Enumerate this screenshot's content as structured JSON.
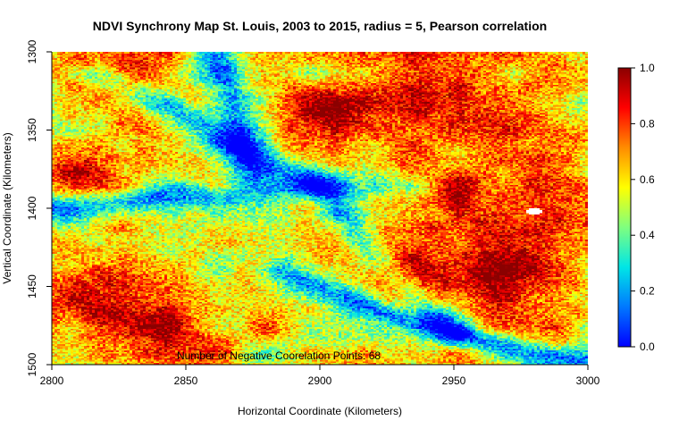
{
  "chart_data": {
    "type": "heatmap",
    "title": "NDVI Synchrony Map St. Louis, 2003 to 2015, radius = 5, Pearson correlation",
    "xlabel": "Horizontal Coordinate (Kilometers)",
    "ylabel": "Vertical Coordinate (Kilometers)",
    "xlim": [
      2800,
      3000
    ],
    "ylim": [
      1500,
      1300
    ],
    "x_ticks": [
      2800,
      2850,
      2900,
      2950,
      3000
    ],
    "x_tick_labels": [
      "2800",
      "2850",
      "2900",
      "2950",
      "3000"
    ],
    "y_ticks": [
      1300,
      1350,
      1400,
      1450,
      1500
    ],
    "y_tick_labels": [
      "1300",
      "1350",
      "1400",
      "1450",
      "1500"
    ],
    "colorbar": {
      "ticks": [
        0.0,
        0.2,
        0.4,
        0.6,
        0.8,
        1.0
      ],
      "tick_labels": [
        "0.0",
        "0.2",
        "0.4",
        "0.6",
        "0.8",
        "1.0"
      ],
      "range": [
        0.0,
        1.0
      ],
      "colors": [
        "#0000ff",
        "#0078ff",
        "#00e6e6",
        "#7fff7f",
        "#ffff00",
        "#ff8c00",
        "#ff0000",
        "#8b0000"
      ]
    },
    "annotation": "Number of Negative Coorelation Points: 68",
    "grid": false,
    "features": {
      "low_synchrony_bands": [
        {
          "x": [
            2818,
            2830,
            2845,
            2860,
            2878,
            2895,
            2905,
            2915,
            2930,
            2950
          ],
          "y": [
            1315,
            1325,
            1338,
            1352,
            1368,
            1380,
            1395,
            1420,
            1445,
            1480
          ]
        },
        {
          "x": [
            2800,
            2820,
            2840,
            2860,
            2880,
            2900,
            2920
          ],
          "y": [
            1400,
            1397,
            1394,
            1392,
            1388,
            1385,
            1386
          ]
        },
        {
          "x": [
            2885,
            2900,
            2915,
            2935,
            2955,
            2975,
            3000
          ],
          "y": [
            1440,
            1452,
            1462,
            1472,
            1482,
            1492,
            1500
          ]
        },
        {
          "x": [
            2860,
            2868,
            2872,
            2875
          ],
          "y": [
            1300,
            1330,
            1358,
            1378
          ]
        }
      ],
      "high_synchrony_blobs": [
        {
          "x": 2950,
          "y": 1325,
          "r": 50
        },
        {
          "x": 2968,
          "y": 1405,
          "r": 45
        },
        {
          "x": 2808,
          "y": 1455,
          "r": 30
        },
        {
          "x": 2838,
          "y": 1475,
          "r": 35
        },
        {
          "x": 2900,
          "y": 1340,
          "r": 24
        },
        {
          "x": 2830,
          "y": 1315,
          "r": 25
        },
        {
          "x": 2810,
          "y": 1380,
          "r": 18
        },
        {
          "x": 2960,
          "y": 1450,
          "r": 40
        },
        {
          "x": 2925,
          "y": 1440,
          "r": 20
        }
      ],
      "blank_column_x": 2813,
      "blank_patch": {
        "x": 2980,
        "y": 1402
      }
    }
  }
}
